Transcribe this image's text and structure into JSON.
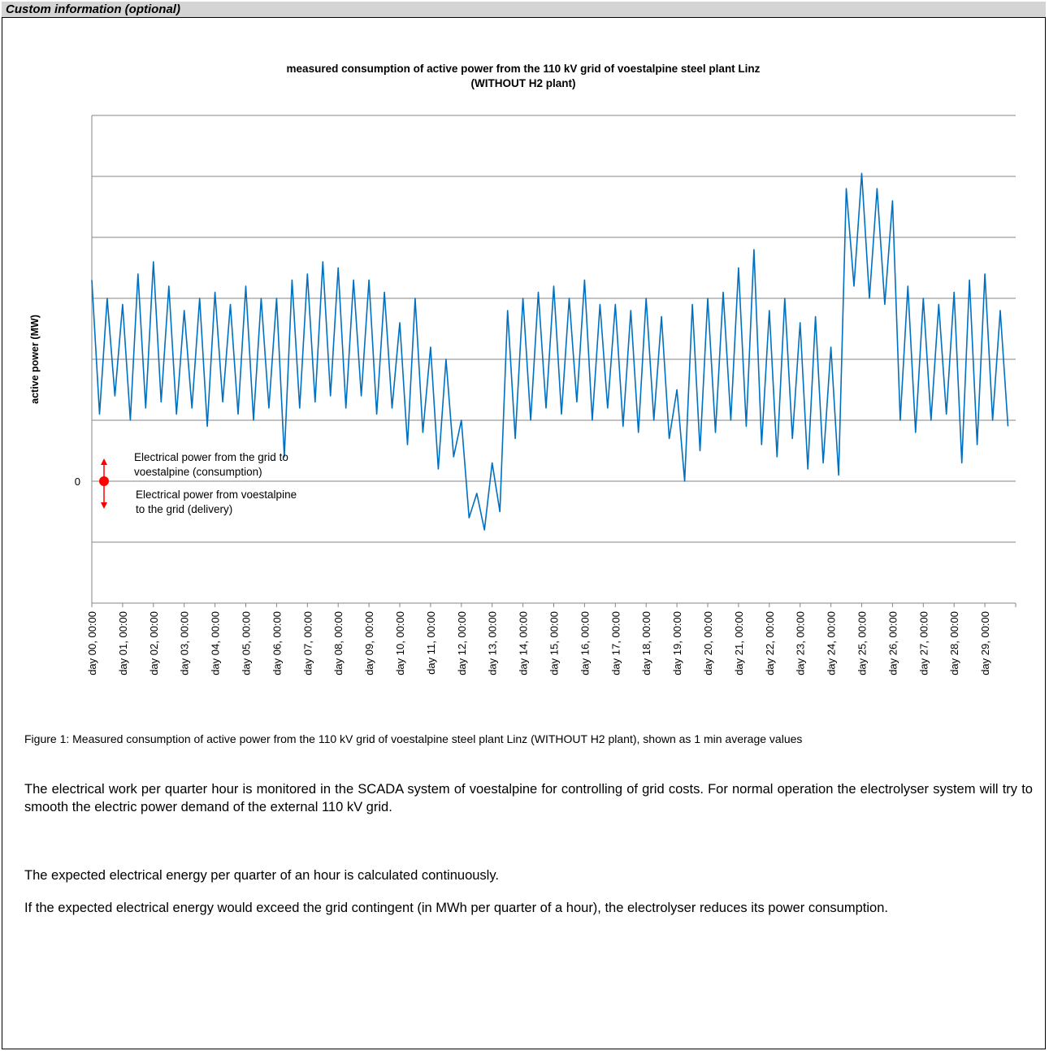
{
  "header": {
    "title": "Custom information (optional)"
  },
  "chart_data": {
    "type": "line",
    "title": [
      "measured consumption of active power from the 110 kV grid of voestalpine steel plant Linz",
      "(WITHOUT H2 plant)"
    ],
    "y_label": "active power (MW)",
    "color": "#0070c0",
    "grid": true,
    "xlim": [
      0,
      30
    ],
    "ylim": [
      -2,
      6
    ],
    "yticks": [
      0
    ],
    "grid_lines": [
      -2,
      -1,
      0,
      1,
      2,
      3,
      4,
      5,
      6
    ],
    "xticks": [
      {
        "value": 0,
        "label": "day 00, 00:00"
      },
      {
        "value": 1,
        "label": "day 01, 00:00"
      },
      {
        "value": 2,
        "label": "day 02, 00:00"
      },
      {
        "value": 3,
        "label": "day 03, 00:00"
      },
      {
        "value": 4,
        "label": "day 04, 00:00"
      },
      {
        "value": 5,
        "label": "day 05, 00:00"
      },
      {
        "value": 6,
        "label": "day 06, 00:00"
      },
      {
        "value": 7,
        "label": "day 07, 00:00"
      },
      {
        "value": 8,
        "label": "day 08, 00:00"
      },
      {
        "value": 9,
        "label": "day 09, 00:00"
      },
      {
        "value": 10,
        "label": "day 10, 00:00"
      },
      {
        "value": 11,
        "label": "day 11, 00:00"
      },
      {
        "value": 12,
        "label": "day 12, 00:00"
      },
      {
        "value": 13,
        "label": "day 13, 00:00"
      },
      {
        "value": 14,
        "label": "day 14, 00:00"
      },
      {
        "value": 15,
        "label": "day 15, 00:00"
      },
      {
        "value": 16,
        "label": "day 16, 00:00"
      },
      {
        "value": 17,
        "label": "day 17, 00:00"
      },
      {
        "value": 18,
        "label": "day 18, 00:00"
      },
      {
        "value": 19,
        "label": "day 19, 00:00"
      },
      {
        "value": 20,
        "label": "day 20, 00:00"
      },
      {
        "value": 21,
        "label": "day 21, 00:00"
      },
      {
        "value": 22,
        "label": "day 22, 00:00"
      },
      {
        "value": 23,
        "label": "day 23, 00:00"
      },
      {
        "value": 24,
        "label": "day 24, 00:00"
      },
      {
        "value": 25,
        "label": "day 25, 00:00"
      },
      {
        "value": 26,
        "label": "day 26, 00:00"
      },
      {
        "value": 27,
        "label": "day 27, 00:00"
      },
      {
        "value": 28,
        "label": "day 28, 00:00"
      },
      {
        "value": 29,
        "label": "day 29, 00:00"
      }
    ],
    "x": [
      0,
      0.25,
      0.5,
      0.75,
      1,
      1.25,
      1.5,
      1.75,
      2,
      2.25,
      2.5,
      2.75,
      3,
      3.25,
      3.5,
      3.75,
      4,
      4.25,
      4.5,
      4.75,
      5,
      5.25,
      5.5,
      5.75,
      6,
      6.25,
      6.5,
      6.75,
      7,
      7.25,
      7.5,
      7.75,
      8,
      8.25,
      8.5,
      8.75,
      9,
      9.25,
      9.5,
      9.75,
      10,
      10.25,
      10.5,
      10.75,
      11,
      11.25,
      11.5,
      11.75,
      12,
      12.25,
      12.5,
      12.75,
      13,
      13.25,
      13.5,
      13.75,
      14,
      14.25,
      14.5,
      14.75,
      15,
      15.25,
      15.5,
      15.75,
      16,
      16.25,
      16.5,
      16.75,
      17,
      17.25,
      17.5,
      17.75,
      18,
      18.25,
      18.5,
      18.75,
      19,
      19.25,
      19.5,
      19.75,
      20,
      20.25,
      20.5,
      20.75,
      21,
      21.25,
      21.5,
      21.75,
      22,
      22.25,
      22.5,
      22.75,
      23,
      23.25,
      23.5,
      23.75,
      24,
      24.25,
      24.5,
      24.75,
      25,
      25.25,
      25.5,
      25.75,
      26,
      26.25,
      26.5,
      26.75,
      27,
      27.25,
      27.5,
      27.75,
      28,
      28.25,
      28.5,
      28.75,
      29,
      29.25,
      29.5,
      29.75
    ],
    "values": [
      3.3,
      1.1,
      3.0,
      1.4,
      2.9,
      1.0,
      3.4,
      1.2,
      3.6,
      1.3,
      3.2,
      1.1,
      2.8,
      1.2,
      3.0,
      0.9,
      3.1,
      1.3,
      2.9,
      1.1,
      3.2,
      1.0,
      3.0,
      1.2,
      3.0,
      0.4,
      3.3,
      1.2,
      3.4,
      1.3,
      3.6,
      1.4,
      3.5,
      1.2,
      3.3,
      1.4,
      3.3,
      1.1,
      3.1,
      1.2,
      2.6,
      0.6,
      3.0,
      0.8,
      2.2,
      0.2,
      2.0,
      0.4,
      1.0,
      -0.6,
      -0.2,
      -0.8,
      0.3,
      -0.5,
      2.8,
      0.7,
      3.0,
      1.0,
      3.1,
      1.2,
      3.2,
      1.1,
      3.0,
      1.3,
      3.3,
      1.0,
      2.9,
      1.2,
      2.9,
      0.9,
      2.8,
      0.8,
      3.0,
      1.0,
      2.7,
      0.7,
      1.5,
      0.0,
      2.9,
      0.5,
      3.0,
      0.8,
      3.1,
      1.0,
      3.5,
      0.9,
      3.8,
      0.6,
      2.8,
      0.4,
      3.0,
      0.7,
      2.6,
      0.2,
      2.7,
      0.3,
      2.2,
      0.1,
      4.8,
      3.2,
      5.05,
      3.0,
      4.8,
      2.9,
      4.6,
      1.0,
      3.2,
      0.8,
      3.0,
      1.0,
      2.9,
      1.1,
      3.1,
      0.3,
      3.3,
      0.6,
      3.4,
      1.0,
      2.8,
      0.9
    ],
    "annotations": [
      "Electrical power from the grid to",
      "voestalpine (consumption)",
      "Electrical power from voestalpine",
      "to the grid (delivery)"
    ]
  },
  "document": {
    "figure_caption": "Figure 1: Measured consumption of active power from the 110 kV grid of voestalpine steel plant Linz (WITHOUT H2 plant), shown as 1 min average values",
    "paragraphs": [
      "The electrical work per quarter hour is monitored in the SCADA system of voestalpine for controlling of grid costs. For normal operation the electrolyser system will try to smooth the electric power demand of the external 110 kV grid.",
      "The expected electrical energy per quarter of an hour is calculated continuously.",
      "If the expected electrical energy would exceed the grid contingent (in MWh per quarter of a hour), the electrolyser reduces its power consumption."
    ]
  }
}
